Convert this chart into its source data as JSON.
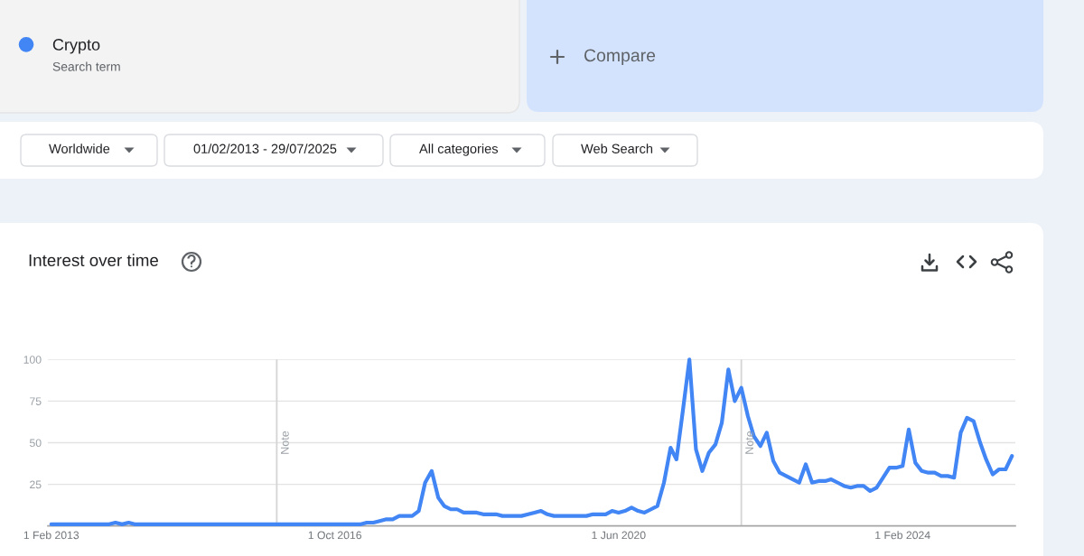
{
  "chart_data": {
    "type": "line",
    "title": "Interest over time",
    "x": [
      "2013-02",
      "2013-03",
      "2013-04",
      "2013-05",
      "2013-06",
      "2013-07",
      "2013-08",
      "2013-09",
      "2013-10",
      "2013-11",
      "2013-12",
      "2014-01",
      "2014-02",
      "2014-03",
      "2014-04",
      "2014-05",
      "2014-06",
      "2014-07",
      "2014-08",
      "2014-09",
      "2014-10",
      "2014-11",
      "2014-12",
      "2015-01",
      "2015-02",
      "2015-03",
      "2015-04",
      "2015-05",
      "2015-06",
      "2015-07",
      "2015-08",
      "2015-09",
      "2015-10",
      "2015-11",
      "2015-12",
      "2016-01",
      "2016-02",
      "2016-03",
      "2016-04",
      "2016-05",
      "2016-06",
      "2016-07",
      "2016-08",
      "2016-09",
      "2016-10",
      "2016-11",
      "2016-12",
      "2017-01",
      "2017-02",
      "2017-03",
      "2017-04",
      "2017-05",
      "2017-06",
      "2017-07",
      "2017-08",
      "2017-09",
      "2017-10",
      "2017-11",
      "2017-12",
      "2018-01",
      "2018-02",
      "2018-03",
      "2018-04",
      "2018-05",
      "2018-06",
      "2018-07",
      "2018-08",
      "2018-09",
      "2018-10",
      "2018-11",
      "2018-12",
      "2019-01",
      "2019-02",
      "2019-03",
      "2019-04",
      "2019-05",
      "2019-06",
      "2019-07",
      "2019-08",
      "2019-09",
      "2019-10",
      "2019-11",
      "2019-12",
      "2020-01",
      "2020-02",
      "2020-03",
      "2020-04",
      "2020-05",
      "2020-06",
      "2020-07",
      "2020-08",
      "2020-09",
      "2020-10",
      "2020-11",
      "2020-12",
      "2021-01",
      "2021-02",
      "2021-03",
      "2021-04",
      "2021-05",
      "2021-06",
      "2021-07",
      "2021-08",
      "2021-09",
      "2021-10",
      "2021-11",
      "2021-12",
      "2022-01",
      "2022-02",
      "2022-03",
      "2022-04",
      "2022-05",
      "2022-06",
      "2022-07",
      "2022-08",
      "2022-09",
      "2022-10",
      "2022-11",
      "2022-12",
      "2023-01",
      "2023-02",
      "2023-03",
      "2023-04",
      "2023-05",
      "2023-06",
      "2023-07",
      "2023-08",
      "2023-09",
      "2023-10",
      "2023-11",
      "2023-12",
      "2024-01",
      "2024-02",
      "2024-03",
      "2024-04",
      "2024-05",
      "2024-06",
      "2024-07",
      "2024-08",
      "2024-09",
      "2024-10",
      "2024-11",
      "2024-12",
      "2025-01",
      "2025-02",
      "2025-03",
      "2025-04",
      "2025-05",
      "2025-06",
      "2025-07"
    ],
    "series": [
      {
        "name": "Crypto",
        "color": "#4285f4",
        "values": [
          1,
          1,
          1,
          1,
          1,
          1,
          1,
          1,
          1,
          1,
          2,
          1,
          2,
          1,
          1,
          1,
          1,
          1,
          1,
          1,
          1,
          1,
          1,
          1,
          1,
          1,
          1,
          1,
          1,
          1,
          1,
          1,
          1,
          1,
          1,
          1,
          1,
          1,
          1,
          1,
          1,
          1,
          1,
          1,
          1,
          1,
          1,
          1,
          1,
          2,
          2,
          3,
          4,
          4,
          6,
          6,
          6,
          9,
          26,
          33,
          17,
          12,
          10,
          10,
          8,
          8,
          8,
          7,
          7,
          7,
          6,
          6,
          6,
          6,
          7,
          8,
          9,
          7,
          6,
          6,
          6,
          6,
          6,
          6,
          7,
          7,
          7,
          9,
          8,
          9,
          11,
          9,
          8,
          10,
          12,
          26,
          47,
          40,
          70,
          100,
          46,
          33,
          44,
          49,
          62,
          94,
          75,
          83,
          66,
          54,
          48,
          56,
          39,
          32,
          30,
          28,
          26,
          37,
          26,
          27,
          27,
          28,
          26,
          24,
          23,
          24,
          24,
          21,
          23,
          29,
          35,
          35,
          36,
          58,
          38,
          33,
          32,
          32,
          30,
          30,
          29,
          56,
          65,
          63,
          50,
          40,
          31,
          34,
          34,
          42
        ]
      }
    ],
    "xlim": [
      "2013-01-16",
      "2025-07-17"
    ],
    "xticks": [
      {
        "value": "2013-02-01",
        "label": "1 Feb 2013"
      },
      {
        "value": "2016-10-01",
        "label": "1 Oct 2016"
      },
      {
        "value": "2020-06-01",
        "label": "1 Jun 2020"
      },
      {
        "value": "2024-02-01",
        "label": "1 Feb 2024"
      }
    ],
    "ylim": [
      0,
      100
    ],
    "yticks": [
      25,
      50,
      75,
      100
    ],
    "grid": "y",
    "legend": "top left",
    "ref_lines": [
      {
        "axis": "x",
        "value": "2016-01",
        "label": "Note"
      },
      {
        "axis": "x",
        "value": "2022-01",
        "label": "Note"
      }
    ],
    "annotations": [
      "Search term",
      "Compare",
      "Worldwide",
      "01/02/2013 - 29/07/2025",
      "All categories",
      "Web Search"
    ]
  }
}
